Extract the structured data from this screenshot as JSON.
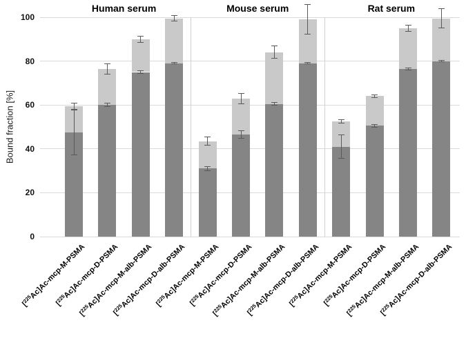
{
  "figure": {
    "background": "#ffffff",
    "text_color": "#000000"
  },
  "chart_data": {
    "type": "bar",
    "stacked": true,
    "error_bars": true,
    "title": "",
    "ylabel": "Bound fraction [%]",
    "xlabel": "",
    "ylim": [
      0,
      100
    ],
    "yticks": [
      0,
      20,
      40,
      60,
      80,
      100
    ],
    "grid": true,
    "legend": "none",
    "bar_colors": {
      "dark_segment": "#858585",
      "light_segment": "#c9c9c9"
    },
    "error_bar_color": "#595959",
    "gridline_color": "#d9d9d9",
    "panel_separator_color": "#d0d0d0",
    "categories": [
      "[225Ac]Ac-mcp-M-PSMA",
      "[225Ac]Ac-mcp-D-PSMA",
      "[225Ac]Ac-mcp-M-alb-PSMA",
      "[225Ac]Ac-mcp-D-alb-PSMA"
    ],
    "panels": [
      {
        "title": "Human serum",
        "bars": [
          {
            "label_pre": "[",
            "label_sup": "225",
            "label_rest": "Ac]Ac-mcp-M-PSMA",
            "dark": 47.5,
            "light": 12.0,
            "total": 59.5,
            "dark_err": 10.5,
            "total_err": 1.5
          },
          {
            "label_pre": "[",
            "label_sup": "225",
            "label_rest": "Ac]Ac-mcp-D-PSMA",
            "dark": 60.0,
            "light": 16.5,
            "total": 76.5,
            "dark_err": 1.0,
            "total_err": 2.5
          },
          {
            "label_pre": "[",
            "label_sup": "225",
            "label_rest": "Ac]Ac-mcp-M-alb-PSMA",
            "dark": 75.0,
            "light": 15.0,
            "total": 90.0,
            "dark_err": 0.7,
            "total_err": 1.5
          },
          {
            "label_pre": "[",
            "label_sup": "225",
            "label_rest": "Ac]Ac-mcp-D-alb-PSMA",
            "dark": 79.0,
            "light": 20.5,
            "total": 99.5,
            "dark_err": 0.5,
            "total_err": 1.5
          }
        ]
      },
      {
        "title": "Mouse serum",
        "bars": [
          {
            "label_pre": "[",
            "label_sup": "225",
            "label_rest": "Ac]Ac-mcp-M-PSMA",
            "dark": 31.0,
            "light": 12.5,
            "total": 43.5,
            "dark_err": 1.0,
            "total_err": 2.0
          },
          {
            "label_pre": "[",
            "label_sup": "225",
            "label_rest": "Ac]Ac-mcp-D-PSMA",
            "dark": 46.5,
            "light": 16.5,
            "total": 63.0,
            "dark_err": 2.0,
            "total_err": 2.5
          },
          {
            "label_pre": "[",
            "label_sup": "225",
            "label_rest": "Ac]Ac-mcp-M-alb-PSMA",
            "dark": 60.5,
            "light": 23.5,
            "total": 84.0,
            "dark_err": 0.7,
            "total_err": 3.0
          },
          {
            "label_pre": "[",
            "label_sup": "225",
            "label_rest": "Ac]Ac-mcp-D-alb-PSMA",
            "dark": 79.0,
            "light": 20.0,
            "total": 99.0,
            "dark_err": 0.5,
            "total_err": 7.0
          }
        ]
      },
      {
        "title": "Rat serum",
        "bars": [
          {
            "label_pre": "[",
            "label_sup": "225",
            "label_rest": "Ac]Ac-mcp-M-PSMA",
            "dark": 41.0,
            "light": 11.5,
            "total": 52.5,
            "dark_err": 5.5,
            "total_err": 1.0
          },
          {
            "label_pre": "[",
            "label_sup": "225",
            "label_rest": "Ac]Ac-mcp-D-PSMA",
            "dark": 50.5,
            "light": 13.5,
            "total": 64.0,
            "dark_err": 0.7,
            "total_err": 0.8
          },
          {
            "label_pre": "[",
            "label_sup": "225",
            "label_rest": "Ac]Ac-mcp-M-alb-PSMA",
            "dark": 76.5,
            "light": 18.5,
            "total": 95.0,
            "dark_err": 0.7,
            "total_err": 1.5
          },
          {
            "label_pre": "[",
            "label_sup": "225",
            "label_rest": "Ac]Ac-mcp-D-alb-PSMA",
            "dark": 80.0,
            "light": 19.5,
            "total": 99.5,
            "dark_err": 0.5,
            "total_err": 4.5
          }
        ]
      }
    ]
  }
}
